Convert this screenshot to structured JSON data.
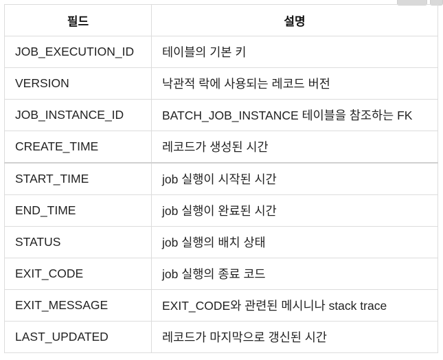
{
  "table": {
    "headers": {
      "field": "필드",
      "description": "설명"
    },
    "rows": [
      {
        "field": "JOB_EXECUTION_ID",
        "description": "테이블의 기본 키"
      },
      {
        "field": "VERSION",
        "description": "낙관적 락에 사용되는 레코드 버전"
      },
      {
        "field": "JOB_INSTANCE_ID",
        "description": "BATCH_JOB_INSTANCE 테이블을 참조하는 FK"
      },
      {
        "field": "CREATE_TIME",
        "description": "레코드가 생성된 시간"
      },
      {
        "field": "START_TIME",
        "description": "job 실행이 시작된 시간"
      },
      {
        "field": "END_TIME",
        "description": "job 실행이 완료된 시간"
      },
      {
        "field": "STATUS",
        "description": "job 실행의 배치 상태"
      },
      {
        "field": "EXIT_CODE",
        "description": "job 실행의 종료 코드"
      },
      {
        "field": "EXIT_MESSAGE",
        "description": "EXIT_CODE와 관련된 메시니나 stack trace"
      },
      {
        "field": "LAST_UPDATED",
        "description": "레코드가 마지막으로 갱신된 시간"
      }
    ]
  }
}
